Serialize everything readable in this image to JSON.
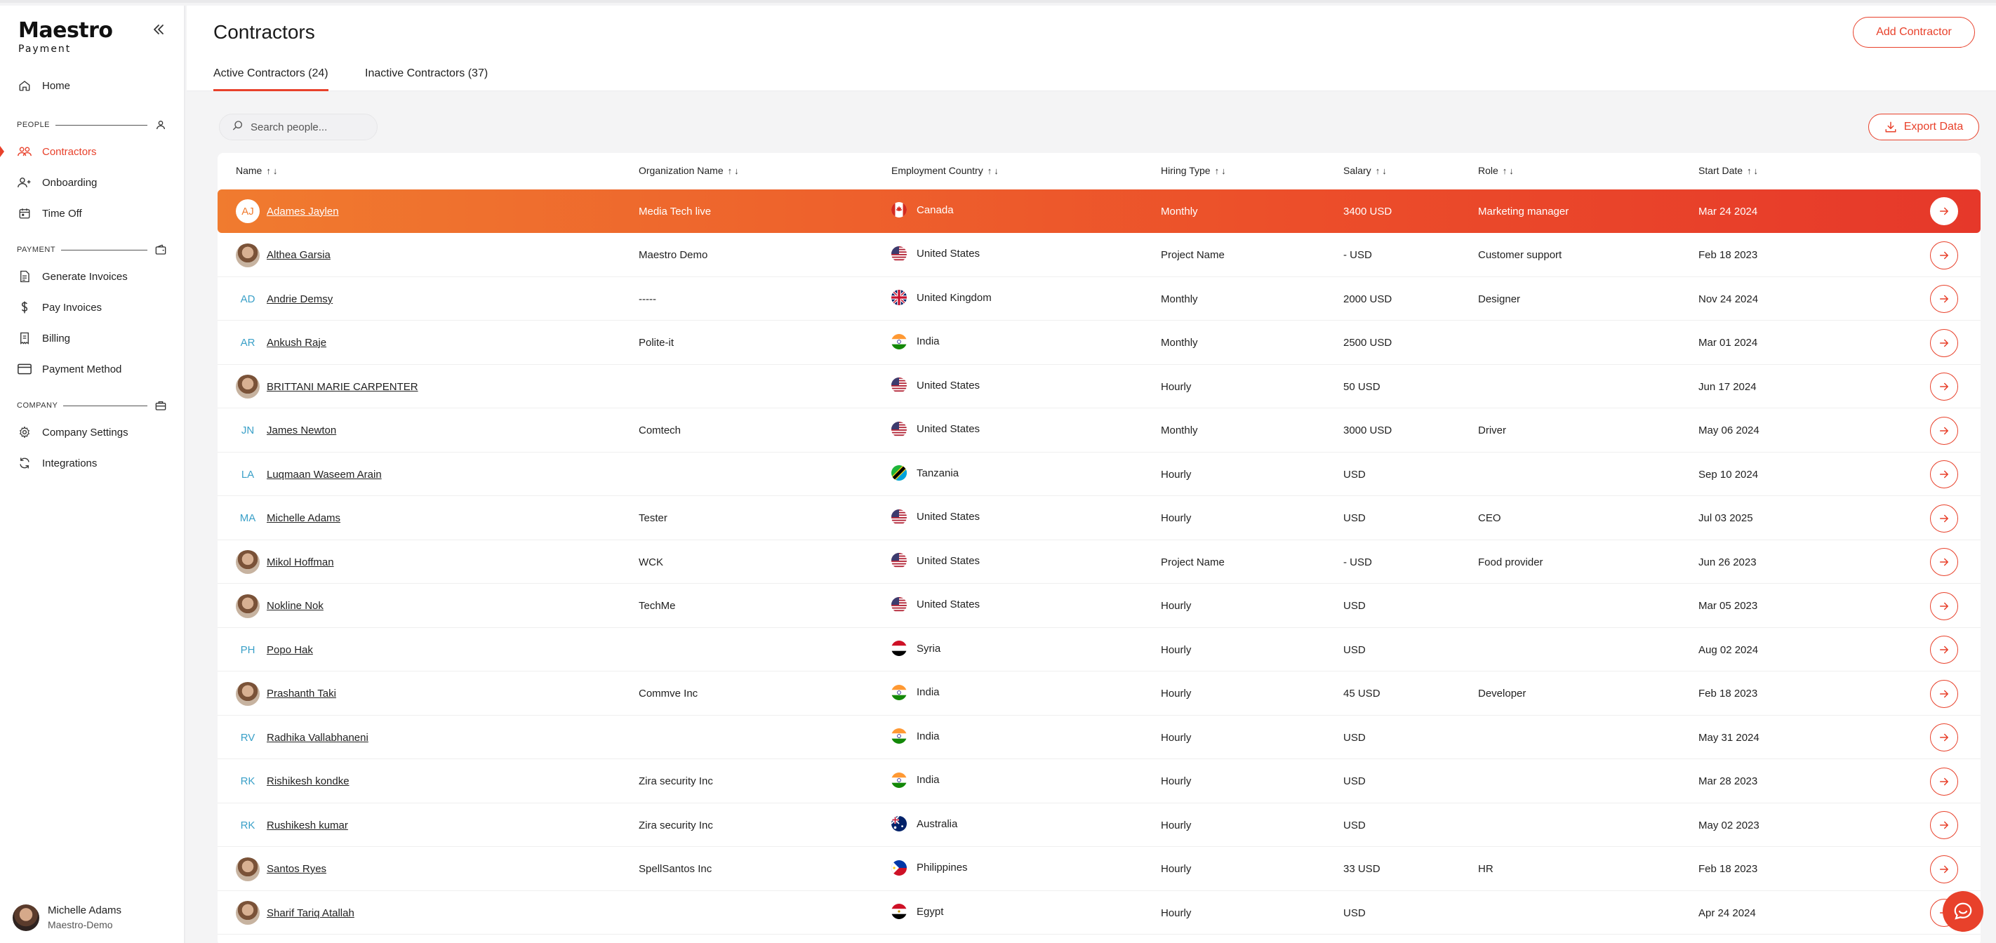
{
  "brand": {
    "name": "Maestro",
    "sub": "Payment"
  },
  "nav": {
    "home": "Home",
    "sections": {
      "people": "PEOPLE",
      "payment": "PAYMENT",
      "company": "COMPANY"
    },
    "people_items": [
      "Contractors",
      "Onboarding",
      "Time Off"
    ],
    "payment_items": [
      "Generate Invoices",
      "Pay Invoices",
      "Billing",
      "Payment Method"
    ],
    "company_items": [
      "Company Settings",
      "Integrations"
    ],
    "active": "Contractors"
  },
  "user": {
    "name": "Michelle Adams",
    "org": "Maestro-Demo"
  },
  "header": {
    "title": "Contractors",
    "add_label": "Add Contractor",
    "tabs": [
      "Active Contractors (24)",
      "Inactive Contractors (37)"
    ]
  },
  "toolbar": {
    "search_placeholder": "Search people...",
    "export_label": "Export Data"
  },
  "table": {
    "columns": [
      "Name",
      "Organization Name",
      "Employment Country",
      "Hiring Type",
      "Salary",
      "Role",
      "Start Date"
    ],
    "rows": [
      {
        "initials": "AJ",
        "photo": false,
        "name": "Adames Jaylen",
        "org": "Media Tech live",
        "country": "Canada",
        "flag": "ca",
        "hiring": "Monthly",
        "salary": "3400 USD",
        "role": "Marketing manager",
        "start": "Mar 24 2024"
      },
      {
        "initials": "",
        "photo": true,
        "name": "Althea Garsia",
        "org": "Maestro Demo",
        "country": "United States",
        "flag": "us",
        "hiring": "Project Name",
        "salary": "- USD",
        "role": "Customer support",
        "start": "Feb 18 2023"
      },
      {
        "initials": "AD",
        "photo": false,
        "name": "Andrie Demsy",
        "org": "-----",
        "country": "United Kingdom",
        "flag": "gb",
        "hiring": "Monthly",
        "salary": "2000 USD",
        "role": "Designer",
        "start": "Nov 24 2024"
      },
      {
        "initials": "AR",
        "photo": false,
        "name": "Ankush Raje",
        "org": "Polite-it",
        "country": "India",
        "flag": "in",
        "hiring": "Monthly",
        "salary": "2500 USD",
        "role": "",
        "start": "Mar 01 2024"
      },
      {
        "initials": "",
        "photo": true,
        "name": "BRITTANI MARIE CARPENTER",
        "org": "",
        "country": "United States",
        "flag": "us",
        "hiring": "Hourly",
        "salary": "50 USD",
        "role": "",
        "start": "Jun 17 2024"
      },
      {
        "initials": "JN",
        "photo": false,
        "name": "James Newton",
        "org": "Comtech",
        "country": "United States",
        "flag": "us",
        "hiring": "Monthly",
        "salary": "3000 USD",
        "role": "Driver",
        "start": "May 06 2024"
      },
      {
        "initials": "LA",
        "photo": false,
        "name": "Luqmaan Waseem Arain",
        "org": "",
        "country": "Tanzania",
        "flag": "tz",
        "hiring": "Hourly",
        "salary": "USD",
        "role": "",
        "start": "Sep 10 2024"
      },
      {
        "initials": "MA",
        "photo": false,
        "name": "Michelle Adams",
        "org": "Tester",
        "country": "United States",
        "flag": "us",
        "hiring": "Hourly",
        "salary": "USD",
        "role": "CEO",
        "start": "Jul 03 2025"
      },
      {
        "initials": "",
        "photo": true,
        "name": "Mikol Hoffman",
        "org": "WCK",
        "country": "United States",
        "flag": "us",
        "hiring": "Project Name",
        "salary": "- USD",
        "role": "Food provider",
        "start": "Jun 26 2023"
      },
      {
        "initials": "",
        "photo": true,
        "name": "Nokline Nok",
        "org": "TechMe",
        "country": "United States",
        "flag": "us",
        "hiring": "Hourly",
        "salary": "USD",
        "role": "",
        "start": "Mar 05 2023"
      },
      {
        "initials": "PH",
        "photo": false,
        "name": "Popo Hak",
        "org": "",
        "country": "Syria",
        "flag": "sy",
        "hiring": "Hourly",
        "salary": "USD",
        "role": "",
        "start": "Aug 02 2024"
      },
      {
        "initials": "",
        "photo": true,
        "name": "Prashanth Taki",
        "org": "Commve Inc",
        "country": "India",
        "flag": "in",
        "hiring": "Hourly",
        "salary": "45 USD",
        "role": "Developer",
        "start": "Feb 18 2023"
      },
      {
        "initials": "RV",
        "photo": false,
        "name": "Radhika Vallabhaneni",
        "org": "",
        "country": "India",
        "flag": "in",
        "hiring": "Hourly",
        "salary": "USD",
        "role": "",
        "start": "May 31 2024"
      },
      {
        "initials": "RK",
        "photo": false,
        "name": "Rishikesh kondke",
        "org": "Zira security Inc",
        "country": "India",
        "flag": "in",
        "hiring": "Hourly",
        "salary": "USD",
        "role": "",
        "start": "Mar 28 2023"
      },
      {
        "initials": "RK",
        "photo": false,
        "name": "Rushikesh kumar",
        "org": "Zira security Inc",
        "country": "Australia",
        "flag": "au",
        "hiring": "Hourly",
        "salary": "USD",
        "role": "",
        "start": "May 02 2023"
      },
      {
        "initials": "",
        "photo": true,
        "name": "Santos Ryes",
        "org": "SpellSantos Inc",
        "country": "Philippines",
        "flag": "ph",
        "hiring": "Hourly",
        "salary": "33 USD",
        "role": "HR",
        "start": "Feb 18 2023"
      },
      {
        "initials": "",
        "photo": true,
        "name": "Sharif Tariq Atallah",
        "org": "",
        "country": "Egypt",
        "flag": "eg",
        "hiring": "Hourly",
        "salary": "USD",
        "role": "",
        "start": "Apr 24 2024"
      }
    ]
  },
  "colors": {
    "accent": "#e8412b",
    "highlight_start": "#f07b2f",
    "initials": "#3aa0c8"
  }
}
